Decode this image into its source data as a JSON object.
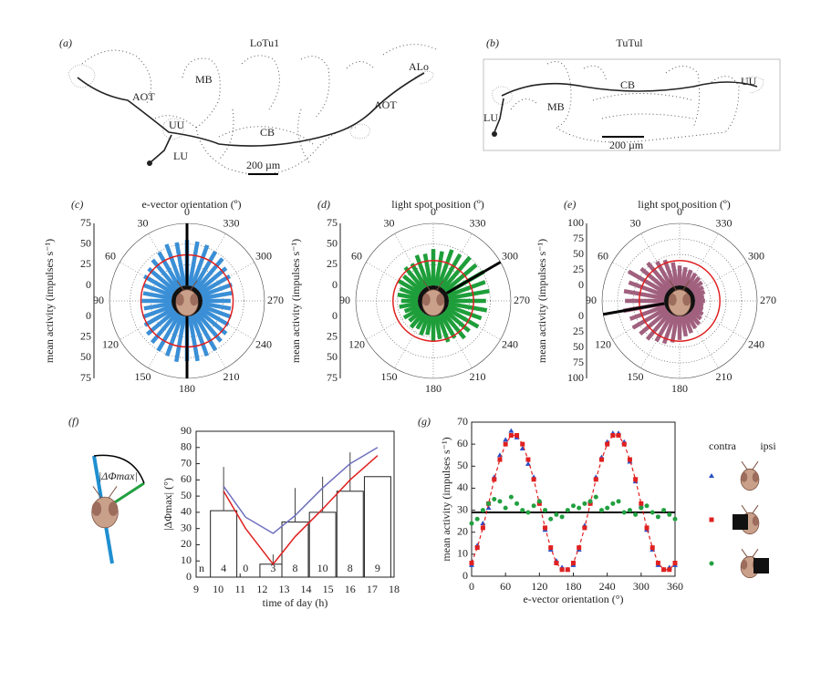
{
  "panels": {
    "a": {
      "label": "(a)",
      "title": "LoTu1",
      "labels": [
        "AOT",
        "MB",
        "UU",
        "LU",
        "CB",
        "ALo",
        "AOT"
      ],
      "scale": "200 µm"
    },
    "b": {
      "label": "(b)",
      "title": "TuTul",
      "labels": [
        "UU",
        "LU",
        "MB",
        "CB"
      ],
      "scale": "200 µm"
    }
  },
  "chart_data": [
    {
      "type": "polar",
      "panel": "(c)",
      "title": "e-vector orientation (º)",
      "ylabel": "mean activity (impulses s⁻¹)",
      "angles": [
        0,
        10,
        20,
        30,
        40,
        50,
        60,
        70,
        80,
        90,
        100,
        110,
        120,
        130,
        140,
        150,
        160,
        170,
        180,
        190,
        200,
        210,
        220,
        230,
        240,
        250,
        260,
        270,
        280,
        290,
        300,
        310,
        320,
        330,
        340,
        350
      ],
      "values": [
        55,
        53,
        54,
        49,
        46,
        42,
        41,
        37,
        35,
        36,
        34,
        38,
        40,
        44,
        47,
        51,
        52,
        56,
        54,
        55,
        52,
        50,
        45,
        43,
        39,
        38,
        35,
        34,
        37,
        39,
        41,
        43,
        48,
        50,
        53,
        54
      ],
      "color": "#3a8fd6",
      "rlim": [
        0,
        75
      ],
      "rticks": [
        0,
        25,
        50,
        75
      ],
      "angle_ticks": [
        0,
        30,
        60,
        90,
        120,
        150,
        180,
        210,
        240,
        270,
        300,
        330
      ],
      "mean_radius": 37,
      "mean_color": "#e02020",
      "directions": [
        0,
        180
      ]
    },
    {
      "type": "polar",
      "panel": "(d)",
      "title": "light spot position (º)",
      "ylabel": "mean activity (impulses s⁻¹)",
      "angles": [
        0,
        10,
        20,
        30,
        40,
        50,
        60,
        70,
        80,
        90,
        100,
        110,
        120,
        130,
        140,
        150,
        160,
        170,
        180,
        190,
        200,
        210,
        220,
        230,
        240,
        250,
        260,
        270,
        280,
        290,
        300,
        310,
        320,
        330,
        340,
        350
      ],
      "values": [
        44,
        39,
        40,
        33,
        34,
        28,
        30,
        24,
        25,
        20,
        23,
        18,
        22,
        19,
        23,
        20,
        25,
        23,
        30,
        28,
        34,
        33,
        40,
        38,
        44,
        43,
        47,
        45,
        50,
        48,
        52,
        49,
        50,
        46,
        47,
        42
      ],
      "color": "#1e9e3a",
      "rlim": [
        0,
        75
      ],
      "rticks": [
        0,
        25,
        50,
        75
      ],
      "angle_ticks": [
        0,
        30,
        60,
        90,
        120,
        150,
        180,
        210,
        240,
        270,
        300,
        330
      ],
      "mean_radius": 30,
      "mean_color": "#e02020",
      "directions": [
        300
      ]
    },
    {
      "type": "polar",
      "panel": "(e)",
      "title": "light spot position (º)",
      "ylabel": "mean activity (impulses s⁻¹)",
      "angles": [
        0,
        10,
        20,
        30,
        40,
        50,
        60,
        70,
        80,
        90,
        100,
        110,
        120,
        130,
        140,
        150,
        160,
        170,
        180,
        190,
        200,
        210,
        220,
        230,
        240,
        250,
        260,
        270,
        280,
        290,
        300,
        310,
        320,
        330,
        340,
        350
      ],
      "values": [
        32,
        38,
        45,
        48,
        55,
        56,
        70,
        62,
        66,
        63,
        67,
        60,
        62,
        58,
        56,
        50,
        48,
        43,
        38,
        33,
        30,
        26,
        24,
        20,
        18,
        15,
        14,
        16,
        15,
        18,
        19,
        22,
        24,
        26,
        28,
        30
      ],
      "color": "#a0607e",
      "rlim": [
        0,
        100
      ],
      "rticks": [
        0,
        25,
        50,
        75,
        100
      ],
      "angle_ticks": [
        0,
        30,
        60,
        90,
        120,
        150,
        180,
        210,
        240,
        270,
        300,
        330
      ],
      "mean_radius": 40,
      "mean_color": "#e02020",
      "directions": [
        100
      ]
    },
    {
      "type": "bar-line",
      "panel": "(f)",
      "xlabel": "time of day (h)",
      "ylabel": "|ΔΦmax| (°)",
      "inset_label": "|ΔΦmax|",
      "xlim": [
        9,
        18
      ],
      "xticks": [
        9,
        10,
        11,
        12,
        13,
        14,
        15,
        16,
        17,
        18
      ],
      "ylim": [
        0,
        90
      ],
      "yticks": [
        0,
        10,
        20,
        30,
        40,
        50,
        60,
        70,
        80,
        90
      ],
      "x": [
        10.25,
        11.25,
        12.5,
        13.5,
        14.75,
        16,
        17.25
      ],
      "values": [
        41,
        0,
        8,
        34,
        40,
        53,
        62
      ],
      "errors": [
        27,
        null,
        6,
        21,
        22,
        24,
        null
      ],
      "n_label": "n",
      "n": [
        4,
        0,
        3,
        8,
        10,
        8,
        9
      ],
      "series": [
        {
          "color": "#6f6fbf",
          "values": [
            56,
            37,
            27,
            38,
            55,
            70,
            80
          ]
        },
        {
          "color": "#e02020",
          "values": [
            53,
            30,
            8,
            25,
            42,
            60,
            75
          ]
        }
      ]
    },
    {
      "type": "scatter-line",
      "panel": "(g)",
      "xlabel": "e-vector orientation (°)",
      "ylabel": "mean activity (impulses s⁻¹)",
      "xlim": [
        0,
        360
      ],
      "xticks": [
        0,
        60,
        120,
        180,
        240,
        300,
        360
      ],
      "ylim": [
        0,
        70
      ],
      "yticks": [
        0,
        10,
        20,
        30,
        40,
        50,
        60,
        70
      ],
      "x": [
        0,
        10,
        20,
        30,
        40,
        50,
        60,
        70,
        80,
        90,
        100,
        110,
        120,
        130,
        140,
        150,
        160,
        170,
        180,
        190,
        200,
        210,
        220,
        230,
        240,
        250,
        260,
        270,
        280,
        290,
        300,
        310,
        320,
        330,
        340,
        350,
        360
      ],
      "series": [
        {
          "color": "#2850c8",
          "marker": "triangle",
          "values": [
            5,
            14,
            24,
            31,
            45,
            55,
            62,
            66,
            63,
            58,
            51,
            45,
            34,
            21,
            12,
            7,
            4,
            3,
            5,
            12,
            23,
            34,
            45,
            54,
            61,
            65,
            65,
            61,
            52,
            43,
            32,
            21,
            12,
            5,
            3,
            4,
            5
          ]
        },
        {
          "color": "#e02020",
          "marker": "square",
          "line": "dashed",
          "values": [
            6,
            13,
            22,
            33,
            44,
            53,
            60,
            64,
            64,
            60,
            53,
            44,
            33,
            22,
            13,
            6,
            3,
            3,
            6,
            13,
            22,
            33,
            44,
            53,
            60,
            64,
            64,
            60,
            53,
            44,
            33,
            22,
            13,
            6,
            3,
            3,
            6
          ]
        },
        {
          "color": "#22a040",
          "marker": "circle",
          "values": [
            24,
            26,
            30,
            33,
            35,
            34,
            31,
            36,
            33,
            30,
            29,
            32,
            34,
            30,
            26,
            28,
            27,
            30,
            32,
            31,
            33,
            34,
            36,
            30,
            31,
            33,
            34,
            29,
            30,
            28,
            31,
            32,
            29,
            27,
            30,
            28,
            26
          ]
        }
      ],
      "reference_line": 29,
      "legend_headers": [
        "contra",
        "ipsi"
      ]
    }
  ]
}
